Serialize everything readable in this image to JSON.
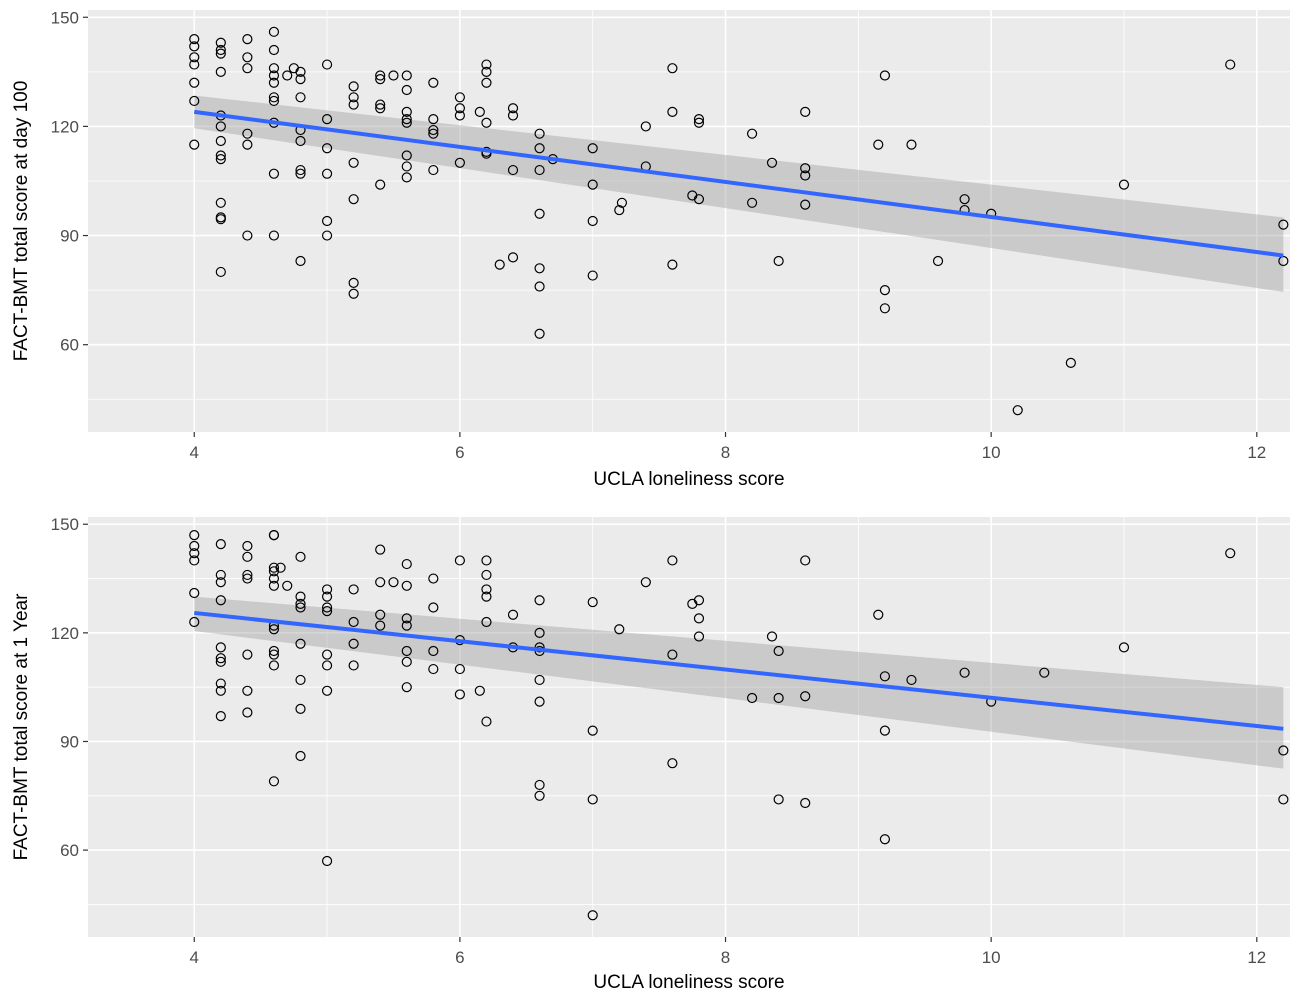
{
  "chart_data": [
    {
      "type": "scatter",
      "xlabel": "UCLA loneliness score",
      "ylabel": "FACT-BMT total score at day 100",
      "xlim": [
        3.2,
        12.25
      ],
      "ylim": [
        36,
        152
      ],
      "xticks": [
        4,
        6,
        8,
        10,
        12
      ],
      "yticks": [
        60,
        90,
        120,
        150
      ],
      "grid": true,
      "points": [
        [
          4.0,
          144
        ],
        [
          4.0,
          142
        ],
        [
          4.0,
          139
        ],
        [
          4.0,
          137
        ],
        [
          4.0,
          132
        ],
        [
          4.0,
          127
        ],
        [
          4.0,
          115
        ],
        [
          4.2,
          143
        ],
        [
          4.2,
          141
        ],
        [
          4.2,
          140
        ],
        [
          4.2,
          135
        ],
        [
          4.2,
          123
        ],
        [
          4.2,
          120
        ],
        [
          4.2,
          116
        ],
        [
          4.2,
          112
        ],
        [
          4.2,
          111
        ],
        [
          4.2,
          99
        ],
        [
          4.2,
          95
        ],
        [
          4.2,
          94.5
        ],
        [
          4.2,
          80
        ],
        [
          4.4,
          144
        ],
        [
          4.4,
          139
        ],
        [
          4.4,
          136
        ],
        [
          4.4,
          118
        ],
        [
          4.4,
          115
        ],
        [
          4.4,
          90
        ],
        [
          4.6,
          146
        ],
        [
          4.6,
          141
        ],
        [
          4.6,
          136
        ],
        [
          4.6,
          134
        ],
        [
          4.6,
          132
        ],
        [
          4.6,
          128
        ],
        [
          4.6,
          127
        ],
        [
          4.6,
          121
        ],
        [
          4.6,
          107
        ],
        [
          4.6,
          90
        ],
        [
          4.7,
          134
        ],
        [
          4.75,
          136
        ],
        [
          4.8,
          135
        ],
        [
          4.8,
          133
        ],
        [
          4.8,
          128
        ],
        [
          4.8,
          119
        ],
        [
          4.8,
          116
        ],
        [
          4.8,
          108
        ],
        [
          4.8,
          107
        ],
        [
          4.8,
          83
        ],
        [
          5.0,
          137
        ],
        [
          5.0,
          122
        ],
        [
          5.0,
          114
        ],
        [
          5.0,
          107
        ],
        [
          5.0,
          94
        ],
        [
          5.0,
          90
        ],
        [
          5.2,
          131
        ],
        [
          5.2,
          128
        ],
        [
          5.2,
          126
        ],
        [
          5.2,
          110
        ],
        [
          5.2,
          100
        ],
        [
          5.2,
          77
        ],
        [
          5.2,
          74
        ],
        [
          5.4,
          134
        ],
        [
          5.4,
          133
        ],
        [
          5.4,
          126
        ],
        [
          5.4,
          125
        ],
        [
          5.4,
          104
        ],
        [
          5.5,
          134
        ],
        [
          5.6,
          134
        ],
        [
          5.6,
          130
        ],
        [
          5.6,
          124
        ],
        [
          5.6,
          122
        ],
        [
          5.6,
          121
        ],
        [
          5.6,
          112
        ],
        [
          5.6,
          109
        ],
        [
          5.6,
          106
        ],
        [
          5.8,
          132
        ],
        [
          5.8,
          122
        ],
        [
          5.8,
          119
        ],
        [
          5.8,
          118
        ],
        [
          5.8,
          108
        ],
        [
          6.0,
          128
        ],
        [
          6.0,
          125
        ],
        [
          6.0,
          123
        ],
        [
          6.0,
          110
        ],
        [
          6.15,
          124
        ],
        [
          6.2,
          137
        ],
        [
          6.2,
          135
        ],
        [
          6.2,
          132
        ],
        [
          6.2,
          121
        ],
        [
          6.2,
          113
        ],
        [
          6.2,
          112.5
        ],
        [
          6.3,
          82
        ],
        [
          6.4,
          125
        ],
        [
          6.4,
          123
        ],
        [
          6.4,
          108
        ],
        [
          6.4,
          84
        ],
        [
          6.6,
          118
        ],
        [
          6.6,
          114
        ],
        [
          6.6,
          108
        ],
        [
          6.6,
          96
        ],
        [
          6.6,
          81
        ],
        [
          6.6,
          76
        ],
        [
          6.6,
          63
        ],
        [
          6.7,
          111
        ],
        [
          7.0,
          114
        ],
        [
          7.0,
          104
        ],
        [
          7.0,
          94
        ],
        [
          7.0,
          79
        ],
        [
          7.2,
          97
        ],
        [
          7.22,
          99
        ],
        [
          7.4,
          120
        ],
        [
          7.4,
          109
        ],
        [
          7.6,
          136
        ],
        [
          7.6,
          124
        ],
        [
          7.6,
          82
        ],
        [
          7.75,
          101
        ],
        [
          7.8,
          122
        ],
        [
          7.8,
          121
        ],
        [
          7.8,
          100
        ],
        [
          8.2,
          118
        ],
        [
          8.2,
          99
        ],
        [
          8.35,
          110
        ],
        [
          8.4,
          83
        ],
        [
          8.6,
          124
        ],
        [
          8.6,
          108.5
        ],
        [
          8.6,
          106.5
        ],
        [
          8.6,
          98.5
        ],
        [
          9.15,
          115
        ],
        [
          9.2,
          134
        ],
        [
          9.2,
          75
        ],
        [
          9.2,
          70
        ],
        [
          9.4,
          115
        ],
        [
          9.6,
          83
        ],
        [
          9.8,
          100
        ],
        [
          9.8,
          97
        ],
        [
          10.0,
          96
        ],
        [
          10.2,
          42
        ],
        [
          10.6,
          55
        ],
        [
          11.0,
          104
        ],
        [
          11.8,
          137
        ],
        [
          12.2,
          93
        ],
        [
          12.2,
          83
        ]
      ],
      "fit": {
        "x": [
          4,
          12.2
        ],
        "y": [
          124,
          84.5
        ],
        "lo": [
          119.5,
          74.5
        ],
        "hi": [
          128.5,
          95
        ],
        "color": "#3366ff"
      }
    },
    {
      "type": "scatter",
      "xlabel": "UCLA loneliness score",
      "ylabel": "FACT-BMT total score at 1 Year",
      "xlim": [
        3.2,
        12.25
      ],
      "ylim": [
        36,
        152
      ],
      "xticks": [
        4,
        6,
        8,
        10,
        12
      ],
      "yticks": [
        60,
        90,
        120,
        150
      ],
      "grid": true,
      "points": [
        [
          4.0,
          147
        ],
        [
          4.0,
          144
        ],
        [
          4.0,
          142
        ],
        [
          4.0,
          140
        ],
        [
          4.0,
          131
        ],
        [
          4.0,
          123
        ],
        [
          4.2,
          144.5
        ],
        [
          4.2,
          136
        ],
        [
          4.2,
          134
        ],
        [
          4.2,
          129
        ],
        [
          4.2,
          116
        ],
        [
          4.2,
          113
        ],
        [
          4.2,
          112
        ],
        [
          4.2,
          106
        ],
        [
          4.2,
          104
        ],
        [
          4.2,
          97
        ],
        [
          4.4,
          144
        ],
        [
          4.4,
          141
        ],
        [
          4.4,
          136
        ],
        [
          4.4,
          135
        ],
        [
          4.4,
          114
        ],
        [
          4.4,
          104
        ],
        [
          4.4,
          98
        ],
        [
          4.6,
          147
        ],
        [
          4.6,
          147
        ],
        [
          4.6,
          138
        ],
        [
          4.6,
          137
        ],
        [
          4.6,
          135
        ],
        [
          4.6,
          133
        ],
        [
          4.6,
          122
        ],
        [
          4.6,
          121
        ],
        [
          4.6,
          115
        ],
        [
          4.6,
          114
        ],
        [
          4.6,
          111
        ],
        [
          4.6,
          79
        ],
        [
          4.65,
          138
        ],
        [
          4.7,
          133
        ],
        [
          4.8,
          141
        ],
        [
          4.8,
          130
        ],
        [
          4.8,
          128
        ],
        [
          4.8,
          127
        ],
        [
          4.8,
          117
        ],
        [
          4.8,
          107
        ],
        [
          4.8,
          99
        ],
        [
          4.8,
          86
        ],
        [
          5.0,
          132
        ],
        [
          5.0,
          130
        ],
        [
          5.0,
          127
        ],
        [
          5.0,
          126
        ],
        [
          5.0,
          114
        ],
        [
          5.0,
          111
        ],
        [
          5.0,
          104
        ],
        [
          5.0,
          57
        ],
        [
          5.2,
          132
        ],
        [
          5.2,
          123
        ],
        [
          5.2,
          117
        ],
        [
          5.2,
          111
        ],
        [
          5.4,
          143
        ],
        [
          5.4,
          134
        ],
        [
          5.4,
          125
        ],
        [
          5.4,
          122
        ],
        [
          5.5,
          134
        ],
        [
          5.6,
          139
        ],
        [
          5.6,
          133
        ],
        [
          5.6,
          124
        ],
        [
          5.6,
          122
        ],
        [
          5.6,
          115
        ],
        [
          5.6,
          112
        ],
        [
          5.6,
          105
        ],
        [
          5.8,
          135
        ],
        [
          5.8,
          127
        ],
        [
          5.8,
          115
        ],
        [
          5.8,
          110
        ],
        [
          6.0,
          140
        ],
        [
          6.0,
          118
        ],
        [
          6.0,
          110
        ],
        [
          6.0,
          103
        ],
        [
          6.15,
          104
        ],
        [
          6.2,
          140
        ],
        [
          6.2,
          136
        ],
        [
          6.2,
          132
        ],
        [
          6.2,
          130
        ],
        [
          6.2,
          123
        ],
        [
          6.2,
          95.5
        ],
        [
          6.4,
          125
        ],
        [
          6.4,
          116
        ],
        [
          6.6,
          129
        ],
        [
          6.6,
          120
        ],
        [
          6.6,
          116
        ],
        [
          6.6,
          115
        ],
        [
          6.6,
          107
        ],
        [
          6.6,
          101
        ],
        [
          6.6,
          78
        ],
        [
          6.6,
          75
        ],
        [
          7.0,
          128.5
        ],
        [
          7.0,
          93
        ],
        [
          7.0,
          74
        ],
        [
          7.0,
          42
        ],
        [
          7.2,
          121
        ],
        [
          7.4,
          134
        ],
        [
          7.6,
          140
        ],
        [
          7.6,
          114
        ],
        [
          7.6,
          84
        ],
        [
          7.75,
          128
        ],
        [
          7.8,
          129
        ],
        [
          7.8,
          124
        ],
        [
          7.8,
          119
        ],
        [
          8.2,
          102
        ],
        [
          8.35,
          119
        ],
        [
          8.4,
          115
        ],
        [
          8.4,
          102
        ],
        [
          8.4,
          74
        ],
        [
          8.6,
          140
        ],
        [
          8.6,
          102.5
        ],
        [
          8.6,
          73
        ],
        [
          9.15,
          125
        ],
        [
          9.2,
          108
        ],
        [
          9.2,
          93
        ],
        [
          9.2,
          63
        ],
        [
          9.4,
          107
        ],
        [
          9.8,
          109
        ],
        [
          10.0,
          101
        ],
        [
          10.4,
          109
        ],
        [
          11.0,
          116
        ],
        [
          11.8,
          142
        ],
        [
          12.2,
          87.5
        ],
        [
          12.2,
          74
        ]
      ],
      "fit": {
        "x": [
          4,
          12.2
        ],
        "y": [
          125.5,
          93.5
        ],
        "lo": [
          120.5,
          82.5
        ],
        "hi": [
          130,
          105
        ],
        "color": "#3366ff"
      }
    }
  ]
}
